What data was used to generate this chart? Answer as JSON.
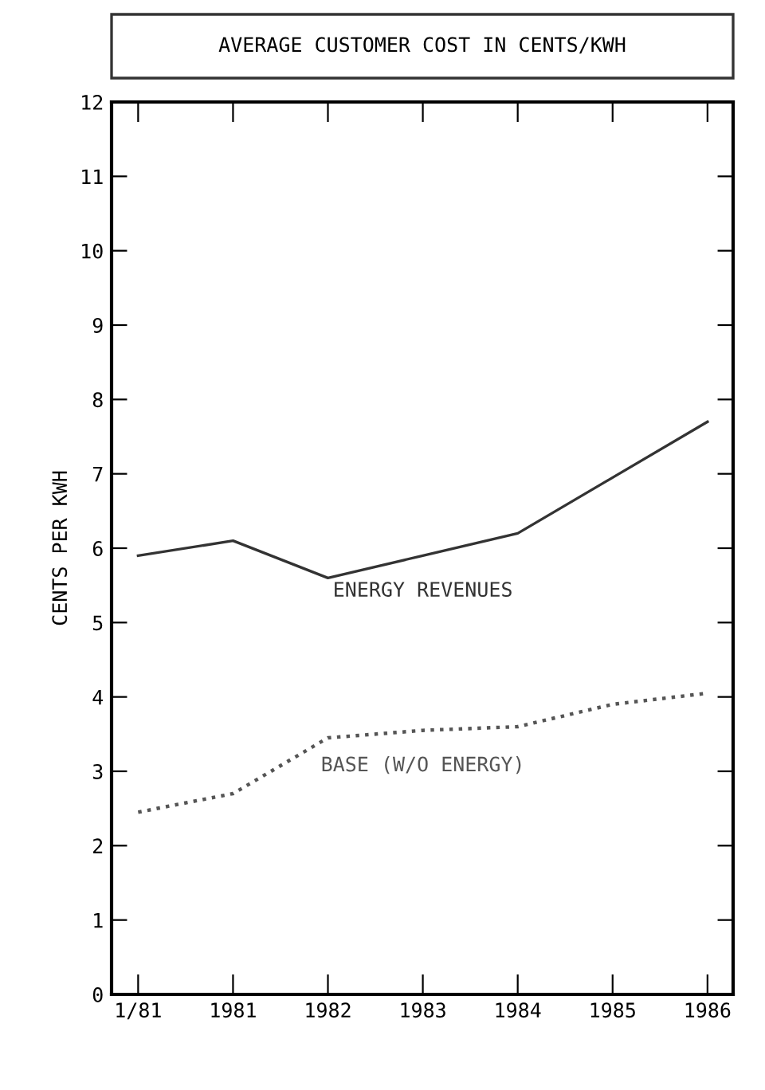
{
  "chart_data": {
    "type": "line",
    "title": "AVERAGE CUSTOMER COST IN CENTS/KWH",
    "ylabel": "CENTS PER KWH",
    "x": [
      1980,
      1981,
      1982,
      1983,
      1984,
      1985,
      1986
    ],
    "series": [
      {
        "name": "ENERGY REVENUES",
        "color": "#333333",
        "line_style": "solid",
        "values": [
          5.9,
          6.1,
          5.6,
          5.9,
          6.2,
          6.95,
          7.7
        ]
      },
      {
        "name": "BASE (W/O ENERGY)",
        "color": "#555555",
        "line_style": "dotted",
        "values": [
          2.45,
          2.7,
          3.45,
          3.55,
          3.6,
          3.9,
          4.05
        ]
      }
    ],
    "xlim": [
      1979.72,
      1986.27
    ],
    "xticks": [
      {
        "value": 1980,
        "label": "1/81"
      },
      1981,
      1982,
      1983,
      1984,
      1985,
      1986
    ],
    "ylim": [
      0,
      12
    ],
    "yticks": [
      0,
      1,
      2,
      3,
      4,
      5,
      6,
      7,
      8,
      9,
      10,
      11,
      12
    ],
    "grid": false,
    "legend": false,
    "marker": "none"
  }
}
